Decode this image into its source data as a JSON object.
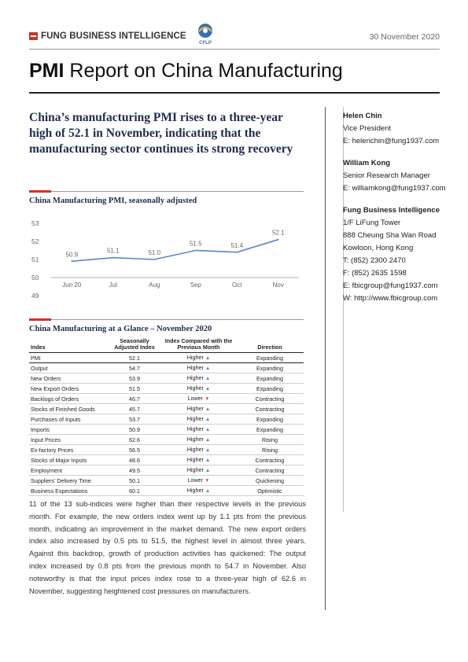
{
  "header": {
    "brand": "FUNG BUSINESS INTELLIGENCE",
    "logo_text": "CFLP",
    "date": "30 November 2020"
  },
  "title": {
    "bold": "PMI",
    "rest": " Report on China Manufacturing"
  },
  "headline": "China’s manufacturing PMI rises to a three-year high of 52.1 in November, indicating that the manufacturing sector continues its strong recovery",
  "contacts": [
    {
      "name": "Helen Chin",
      "title": "Vice President",
      "email": "E: helenchin@fung1937.com"
    },
    {
      "name": "William Kong",
      "title": "Senior Research Manager",
      "email": "E: williamkong@fung1937.com"
    }
  ],
  "organization": {
    "name": "Fung Business Intelligence",
    "lines": [
      "1/F LiFung Tower",
      "888 Cheung Sha Wan Road",
      "Kowloon, Hong Kong",
      "T: (852) 2300 2470",
      "F: (852) 2635 1598",
      "E: fbicgroup@fung1937.com",
      "W: http://www.fbicgroup.com"
    ]
  },
  "chart_data": {
    "type": "line",
    "title": "China Manufacturing PMI, seasonally adjusted",
    "categories": [
      "Jun 20",
      "Jul",
      "Aug",
      "Sep",
      "Oct",
      "Nov"
    ],
    "values": [
      50.9,
      51.1,
      51.0,
      51.5,
      51.4,
      52.1
    ],
    "data_labels": [
      "50.9",
      "51.1",
      "51.0",
      "51.5",
      "51.4",
      "52.1"
    ],
    "yticks": [
      "53",
      "52",
      "51",
      "50",
      "49"
    ],
    "ylim": [
      49,
      53
    ],
    "line_color": "#5b86c5",
    "gridline_at": 50
  },
  "table": {
    "title": "China Manufacturing at a Glance – November 2020",
    "headers": {
      "index": "Index",
      "value": "Seasonally Adjusted Index",
      "compare": "Index Compared with the Previous Month",
      "direction": "Direction"
    },
    "rows": [
      {
        "name": "PMI",
        "value": "52.1",
        "compare": "Higher",
        "arrow": "▲",
        "up": true,
        "direction": "Expanding"
      },
      {
        "name": "Output",
        "value": "54.7",
        "compare": "Higher",
        "arrow": "▲",
        "up": true,
        "direction": "Expanding"
      },
      {
        "name": "New Orders",
        "value": "53.9",
        "compare": "Higher",
        "arrow": "▲",
        "up": true,
        "direction": "Expanding"
      },
      {
        "name": "New Export Orders",
        "value": "51.5",
        "compare": "Higher",
        "arrow": "▲",
        "up": true,
        "direction": "Expanding"
      },
      {
        "name": "Backlogs of Orders",
        "value": "46.7",
        "compare": "Lower",
        "arrow": "▼",
        "up": false,
        "direction": "Contracting"
      },
      {
        "name": "Stocks of Finished Goods",
        "value": "45.7",
        "compare": "Higher",
        "arrow": "▲",
        "up": true,
        "direction": "Contracting"
      },
      {
        "name": "Purchases of Inputs",
        "value": "53.7",
        "compare": "Higher",
        "arrow": "▲",
        "up": true,
        "direction": "Expanding"
      },
      {
        "name": "Imports",
        "value": "50.9",
        "compare": "Higher",
        "arrow": "▲",
        "up": true,
        "direction": "Expanding"
      },
      {
        "name": "Input Prices",
        "value": "62.6",
        "compare": "Higher",
        "arrow": "▲",
        "up": true,
        "direction": "Rising"
      },
      {
        "name": "Ex-factory Prices",
        "value": "56.5",
        "compare": "Higher",
        "arrow": "▲",
        "up": true,
        "direction": "Rising"
      },
      {
        "name": "Stocks of Major Inputs",
        "value": "48.6",
        "compare": "Higher",
        "arrow": "▲",
        "up": true,
        "direction": "Contracting"
      },
      {
        "name": "Employment",
        "value": "49.5",
        "compare": "Higher",
        "arrow": "▲",
        "up": true,
        "direction": "Contracting"
      },
      {
        "name": "Suppliers’ Delivery Time",
        "value": "50.1",
        "compare": "Lower",
        "arrow": "▼",
        "up": false,
        "direction": "Quickening"
      },
      {
        "name": "Business Expectations",
        "value": "60.1",
        "compare": "Higher",
        "arrow": "▲",
        "up": true,
        "direction": "Optimistic"
      }
    ]
  },
  "body": "11 of the 13 sub-indices were higher than their respective levels in the previous month. For example, the new orders index went up by 1.1 pts from the previous month, indicating an improvement in the market demand. The new export orders index also increased by 0.5 pts to 51.5, the highest level in almost three years. Against this backdrop, growth of production activities has quickened: The output index increased by 0.8 pts from the previous month to 54.7 in November. Also noteworthy is that the input prices index rose to a three-year high of 62.6 in November, suggesting heightened cost pressures on manufacturers."
}
